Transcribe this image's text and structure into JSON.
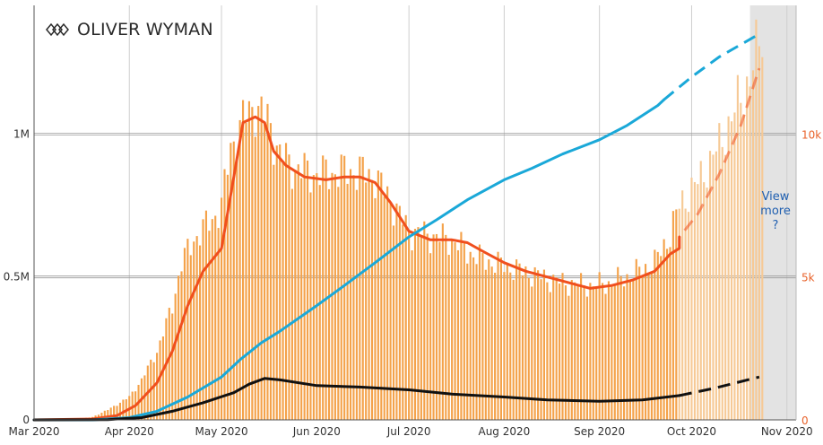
{
  "logo": {
    "text": "OLIVER WYMAN",
    "icon": "oliver-wyman-logo-icon"
  },
  "view_more": {
    "lines": [
      "View",
      "more",
      "?"
    ]
  },
  "colors": {
    "bars": "#f4a24a",
    "bars_projected": "#f6c995",
    "red_line": "#f04f1e",
    "blue_line": "#1aa8d8",
    "black_line": "#111111",
    "right_axis_text": "#e8622a",
    "shaded_region": "#e3e3e3",
    "view_more_text": "#1f5fb0"
  },
  "chart_data": {
    "type": "bar",
    "x_tick_labels": [
      "Mar 2020",
      "Apr 2020",
      "May 2020",
      "Jun 2020",
      "Jul 2020",
      "Aug 2020",
      "Sep 2020",
      "Oct 2020",
      "Nov 2020"
    ],
    "x_ticks": [
      "2020-03-01",
      "2020-04-01",
      "2020-05-01",
      "2020-06-01",
      "2020-07-01",
      "2020-08-01",
      "2020-09-01",
      "2020-10-01",
      "2020-11-01"
    ],
    "xlim": [
      "2020-03-01",
      "2020-11-04"
    ],
    "left_axis": {
      "tick_labels": [
        "0",
        "0.5M",
        "1M"
      ],
      "ticks": [
        0,
        500000,
        1000000
      ],
      "ylim": [
        0,
        1450000
      ]
    },
    "right_axis": {
      "tick_labels": [
        "0",
        "5k",
        "10k"
      ],
      "ticks": [
        0,
        5000,
        10000
      ],
      "ylim": [
        0,
        14500
      ]
    },
    "grid": "vertical lines at month ticks; horizontal lines at labelled ticks",
    "shaded_region": [
      "2020-10-20",
      "2020-11-04"
    ],
    "daily_cases_bars": {
      "axis": "right",
      "projected_from": "2020-09-27",
      "points": [
        [
          "2020-03-01",
          0
        ],
        [
          "2020-03-15",
          20
        ],
        [
          "2020-03-20",
          100
        ],
        [
          "2020-03-25",
          350
        ],
        [
          "2020-04-01",
          800
        ],
        [
          "2020-04-05",
          1400
        ],
        [
          "2020-04-10",
          2400
        ],
        [
          "2020-04-15",
          4000
        ],
        [
          "2020-04-18",
          5500
        ],
        [
          "2020-04-22",
          6300
        ],
        [
          "2020-04-25",
          6700
        ],
        [
          "2020-04-28",
          7000
        ],
        [
          "2020-05-01",
          7500
        ],
        [
          "2020-05-04",
          9500
        ],
        [
          "2020-05-08",
          10500
        ],
        [
          "2020-05-12",
          11000
        ],
        [
          "2020-05-16",
          10500
        ],
        [
          "2020-05-20",
          9300
        ],
        [
          "2020-05-25",
          8800
        ],
        [
          "2020-06-01",
          8600
        ],
        [
          "2020-06-10",
          8700
        ],
        [
          "2020-06-15",
          8700
        ],
        [
          "2020-06-20",
          8500
        ],
        [
          "2020-06-25",
          7700
        ],
        [
          "2020-07-01",
          6600
        ],
        [
          "2020-07-10",
          6400
        ],
        [
          "2020-07-15",
          6300
        ],
        [
          "2020-07-20",
          5900
        ],
        [
          "2020-07-25",
          5600
        ],
        [
          "2020-08-01",
          5400
        ],
        [
          "2020-08-10",
          5100
        ],
        [
          "2020-08-20",
          4800
        ],
        [
          "2020-08-30",
          4700
        ],
        [
          "2020-09-05",
          4800
        ],
        [
          "2020-09-12",
          5100
        ],
        [
          "2020-09-19",
          5500
        ],
        [
          "2020-09-24",
          6500
        ],
        [
          "2020-09-27",
          7500
        ],
        [
          "2020-10-03",
          8300
        ],
        [
          "2020-10-10",
          9600
        ],
        [
          "2020-10-15",
          10800
        ],
        [
          "2020-10-20",
          12000
        ],
        [
          "2020-10-24",
          13500
        ]
      ]
    },
    "series": [
      {
        "color_key": "red_line",
        "axis": "right",
        "projected_from": "2020-09-27",
        "points": [
          [
            "2020-03-01",
            0
          ],
          [
            "2020-03-20",
            30
          ],
          [
            "2020-03-28",
            150
          ],
          [
            "2020-04-03",
            500
          ],
          [
            "2020-04-10",
            1300
          ],
          [
            "2020-04-15",
            2400
          ],
          [
            "2020-04-20",
            4000
          ],
          [
            "2020-04-25",
            5200
          ],
          [
            "2020-05-01",
            6000
          ],
          [
            "2020-05-05",
            8500
          ],
          [
            "2020-05-08",
            10400
          ],
          [
            "2020-05-12",
            10600
          ],
          [
            "2020-05-15",
            10400
          ],
          [
            "2020-05-18",
            9400
          ],
          [
            "2020-05-22",
            8900
          ],
          [
            "2020-05-28",
            8500
          ],
          [
            "2020-06-04",
            8400
          ],
          [
            "2020-06-10",
            8500
          ],
          [
            "2020-06-15",
            8500
          ],
          [
            "2020-06-20",
            8300
          ],
          [
            "2020-06-25",
            7600
          ],
          [
            "2020-07-01",
            6600
          ],
          [
            "2020-07-08",
            6300
          ],
          [
            "2020-07-15",
            6300
          ],
          [
            "2020-07-20",
            6200
          ],
          [
            "2020-07-25",
            5900
          ],
          [
            "2020-08-01",
            5500
          ],
          [
            "2020-08-08",
            5200
          ],
          [
            "2020-08-15",
            5000
          ],
          [
            "2020-08-22",
            4800
          ],
          [
            "2020-08-29",
            4600
          ],
          [
            "2020-09-05",
            4700
          ],
          [
            "2020-09-12",
            4900
          ],
          [
            "2020-09-19",
            5200
          ],
          [
            "2020-09-24",
            5800
          ],
          [
            "2020-09-27",
            6000
          ],
          [
            "2020-09-27",
            6400
          ],
          [
            "2020-10-03",
            7200
          ],
          [
            "2020-10-10",
            8600
          ],
          [
            "2020-10-17",
            10300
          ],
          [
            "2020-10-23",
            12300
          ]
        ]
      },
      {
        "color_key": "blue_line",
        "axis": "left",
        "projected_from": "2020-09-22",
        "points": [
          [
            "2020-03-01",
            0
          ],
          [
            "2020-03-20",
            0
          ],
          [
            "2020-04-01",
            8000
          ],
          [
            "2020-04-10",
            30000
          ],
          [
            "2020-04-20",
            80000
          ],
          [
            "2020-05-01",
            150000
          ],
          [
            "2020-05-07",
            210000
          ],
          [
            "2020-05-14",
            270000
          ],
          [
            "2020-05-20",
            310000
          ],
          [
            "2020-06-01",
            400000
          ],
          [
            "2020-06-10",
            470000
          ],
          [
            "2020-06-20",
            550000
          ],
          [
            "2020-07-01",
            640000
          ],
          [
            "2020-07-10",
            700000
          ],
          [
            "2020-07-20",
            770000
          ],
          [
            "2020-08-01",
            840000
          ],
          [
            "2020-08-10",
            880000
          ],
          [
            "2020-08-20",
            930000
          ],
          [
            "2020-09-01",
            980000
          ],
          [
            "2020-09-10",
            1030000
          ],
          [
            "2020-09-20",
            1100000
          ],
          [
            "2020-09-22",
            1120000
          ],
          [
            "2020-10-01",
            1200000
          ],
          [
            "2020-10-10",
            1270000
          ],
          [
            "2020-10-23",
            1350000
          ]
        ]
      },
      {
        "color_key": "black_line",
        "axis": "right",
        "projected_from": "2020-09-27",
        "points": [
          [
            "2020-03-01",
            0
          ],
          [
            "2020-03-25",
            10
          ],
          [
            "2020-04-05",
            80
          ],
          [
            "2020-04-15",
            300
          ],
          [
            "2020-04-25",
            600
          ],
          [
            "2020-05-05",
            950
          ],
          [
            "2020-05-10",
            1250
          ],
          [
            "2020-05-15",
            1450
          ],
          [
            "2020-05-20",
            1400
          ],
          [
            "2020-06-01",
            1200
          ],
          [
            "2020-06-15",
            1150
          ],
          [
            "2020-07-01",
            1050
          ],
          [
            "2020-07-15",
            900
          ],
          [
            "2020-08-01",
            800
          ],
          [
            "2020-08-15",
            700
          ],
          [
            "2020-09-01",
            650
          ],
          [
            "2020-09-15",
            700
          ],
          [
            "2020-09-27",
            850
          ],
          [
            "2020-10-08",
            1100
          ],
          [
            "2020-10-23",
            1500
          ]
        ]
      }
    ]
  }
}
